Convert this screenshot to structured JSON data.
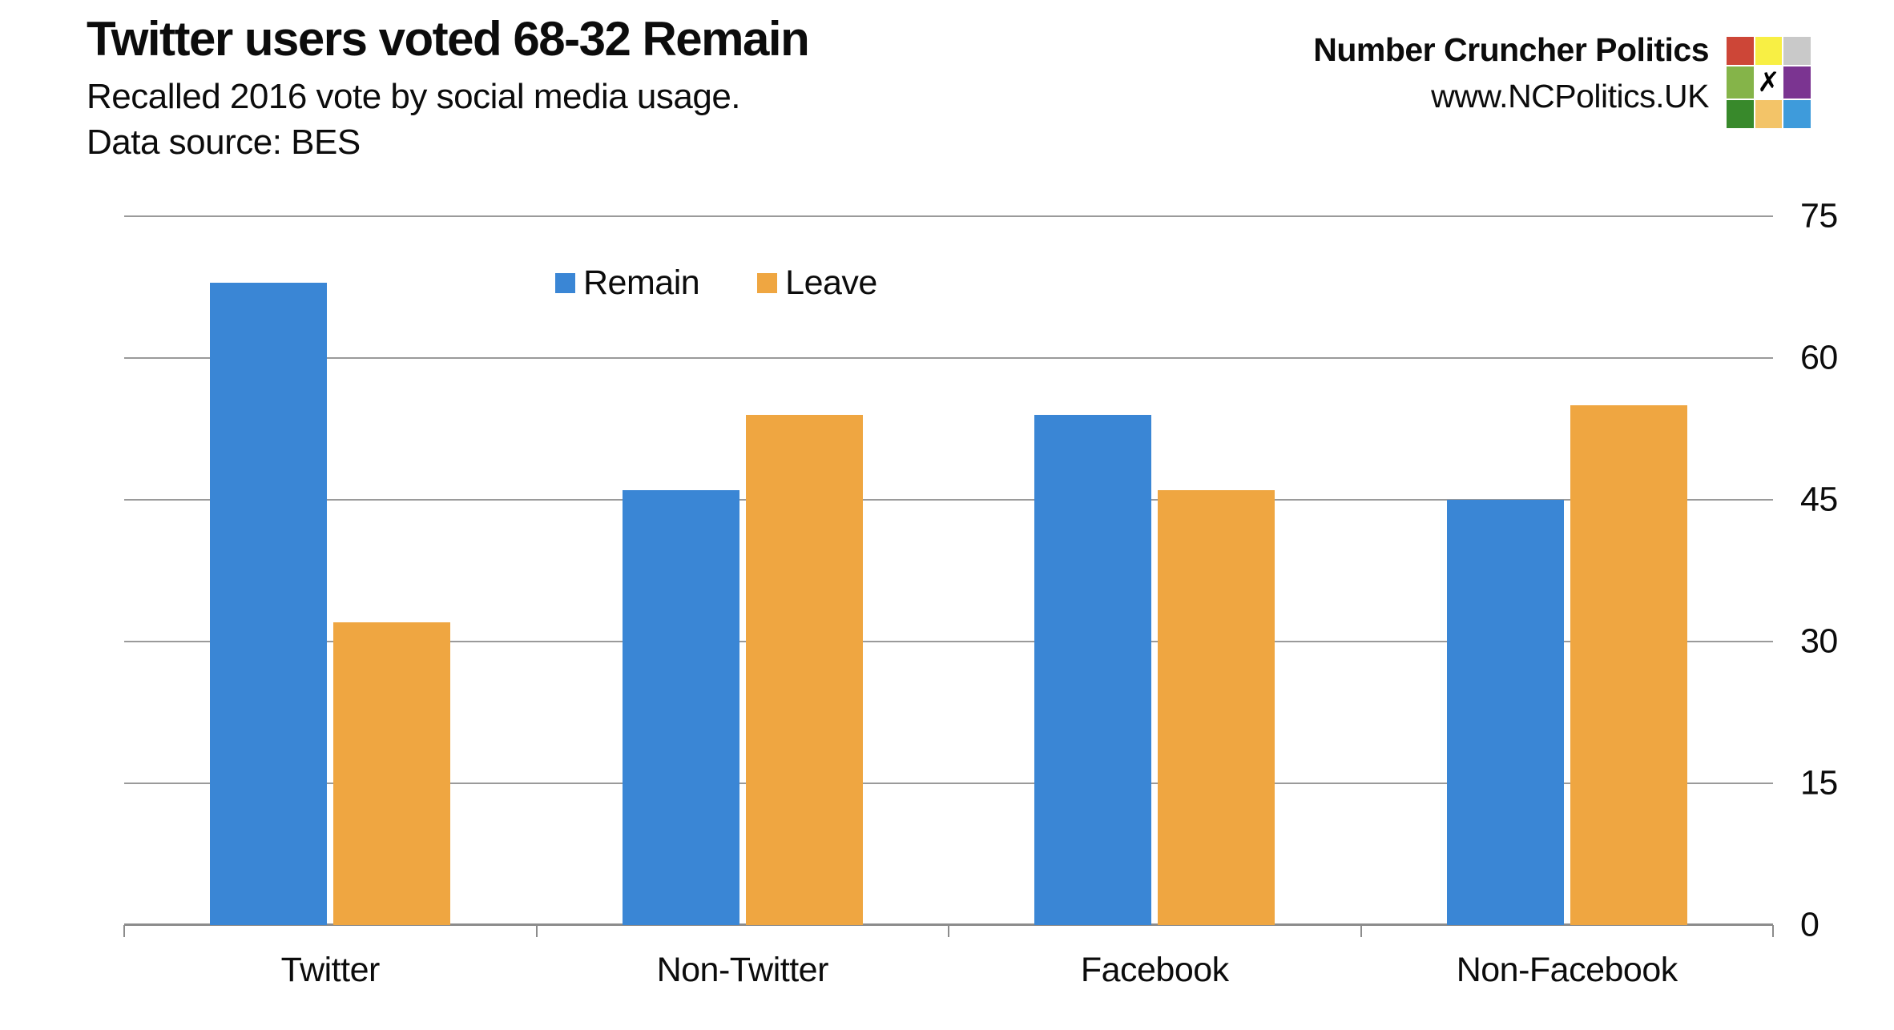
{
  "header": {
    "title": "Twitter users voted 68-32 Remain",
    "subtitle": "Recalled 2016 vote by social media usage.",
    "source": "Data source: BES"
  },
  "brand": {
    "name": "Number Cruncher Politics",
    "url": "www.NCPolitics.UK",
    "logo_mark": "✗",
    "logo_colors": [
      "#cd4637",
      "#f8ef44",
      "#c9c9c9",
      "#85b449",
      "#ffffff",
      "#7b3491",
      "#38892b",
      "#f3c468",
      "#3e9bdb"
    ]
  },
  "chart_data": {
    "type": "bar",
    "categories": [
      "Twitter",
      "Non-Twitter",
      "Facebook",
      "Non-Facebook"
    ],
    "series": [
      {
        "name": "Remain",
        "color": "#3a86d5",
        "values": [
          68,
          46,
          54,
          45
        ]
      },
      {
        "name": "Leave",
        "color": "#efa641",
        "values": [
          32,
          54,
          46,
          55
        ]
      }
    ],
    "ylim": [
      0,
      75
    ],
    "yticks": [
      0,
      15,
      30,
      45,
      60,
      75
    ],
    "grid": "horizontal",
    "legend_position": "top-inside",
    "axis_side": "right"
  }
}
